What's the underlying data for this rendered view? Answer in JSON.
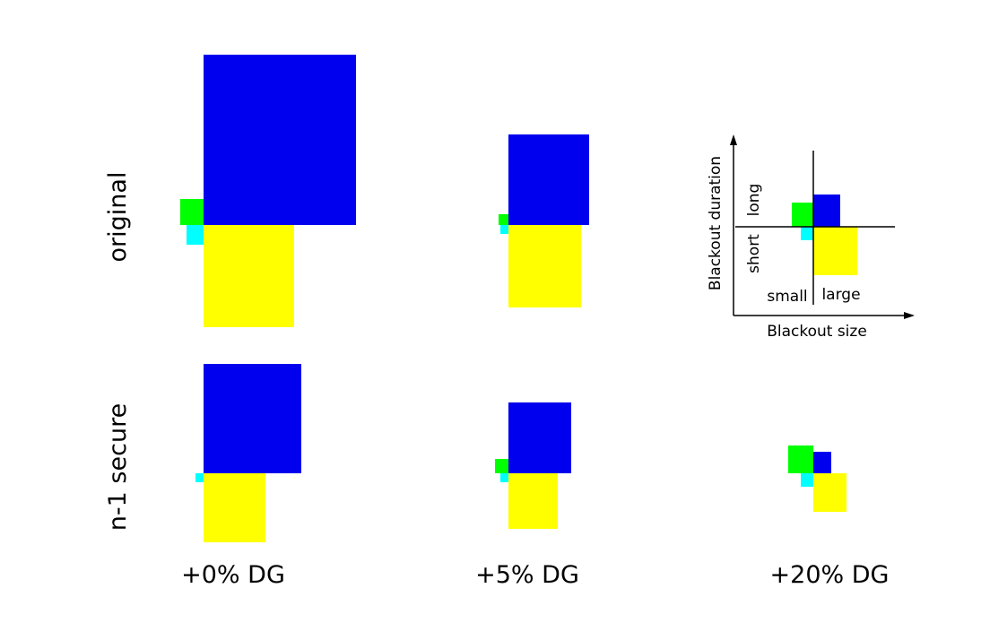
{
  "colors": {
    "blue": "#0000ee",
    "yellow": "#ffff00",
    "green": "#00ff00",
    "cyan": "#00ffff",
    "axis": "#000000"
  },
  "rows": [
    {
      "label": "original"
    },
    {
      "label": "n-1 secure"
    }
  ],
  "columns": [
    {
      "label": "+0% DG"
    },
    {
      "label": "+5% DG"
    },
    {
      "label": "+20% DG"
    }
  ],
  "legend": {
    "x_axis_label": "Blackout size",
    "y_axis_label": "Blackout duration",
    "x_low": "small",
    "x_high": "large",
    "y_low": "short",
    "y_high": "long"
  }
}
